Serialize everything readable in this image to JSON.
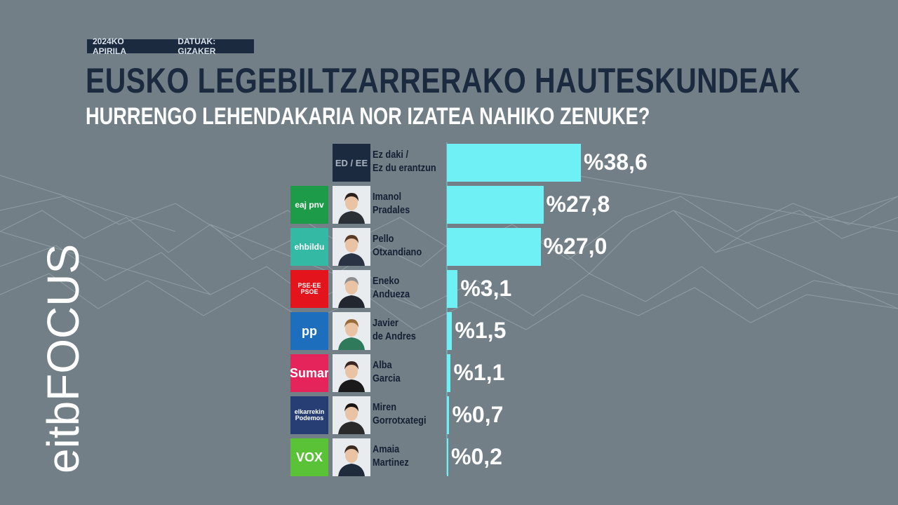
{
  "header": {
    "date_tag": "2024KO APIRILA",
    "source_tag": "DATUAK: GIZAKER",
    "title": "EUSKO LEGEBILTZARRERAKO HAUTESKUNDEAK",
    "subtitle": "HURRENGO LEHENDAKARIA NOR IZATEA NAHIKO ZENUKE?"
  },
  "brand": {
    "logo_text": "eitbFOCUS"
  },
  "colors": {
    "bar": "#6ff0f5",
    "title": "#1c2a3f",
    "background": "#727f87"
  },
  "chart_data": {
    "type": "bar",
    "orientation": "horizontal",
    "title": "HURRENGO LEHENDAKARIA NOR IZATEA NAHIKO ZENUKE?",
    "unit": "%",
    "xlim": [
      0,
      40
    ],
    "rows": [
      {
        "party_label": "",
        "party_color": "",
        "photo_label": "ED / EE",
        "name_line1": "Ez daki /",
        "name_line2": "Ez du erantzun",
        "value": 38.6,
        "value_label": "%38,6"
      },
      {
        "party_label": "eaj pnv",
        "party_color": "#1e9b48",
        "name_line1": "Imanol",
        "name_line2": "Pradales",
        "value": 27.8,
        "value_label": "%27,8"
      },
      {
        "party_label": "ehbildu",
        "party_color": "#34b9a4",
        "name_line1": "Pello",
        "name_line2": "Otxandiano",
        "value": 27.0,
        "value_label": "%27,0"
      },
      {
        "party_label": "PSE-EE PSOE",
        "party_color": "#e3141c",
        "name_line1": "Eneko",
        "name_line2": "Andueza",
        "value": 3.1,
        "value_label": "%3,1"
      },
      {
        "party_label": "pp",
        "party_color": "#1d6fbd",
        "name_line1": "Javier",
        "name_line2": "de Andres",
        "value": 1.5,
        "value_label": "%1,5"
      },
      {
        "party_label": "Sumar",
        "party_color": "#e5245b",
        "name_line1": "Alba",
        "name_line2": "Garcia",
        "value": 1.1,
        "value_label": "%1,1"
      },
      {
        "party_label": "elkarrekin Podemos",
        "party_color": "#263e73",
        "name_line1": "Miren",
        "name_line2": "Gorrotxategi",
        "value": 0.7,
        "value_label": "%0,7"
      },
      {
        "party_label": "VOX",
        "party_color": "#5ac236",
        "name_line1": "Amaia",
        "name_line2": "Martinez",
        "value": 0.2,
        "value_label": "%0,2"
      }
    ]
  }
}
